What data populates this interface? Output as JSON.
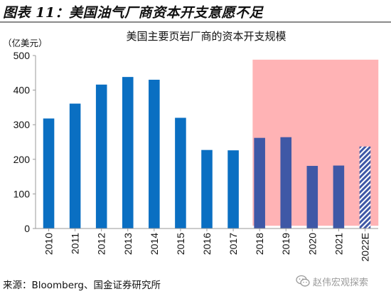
{
  "figure": {
    "title": "图表 11：美国油气厂商资本开支意愿不足",
    "source": "来源：Bloomberg、国金证券研究所",
    "watermark": "赵伟宏观探索"
  },
  "colors": {
    "bar": "#0a6fc2",
    "highlight_region": "#ffb3b5",
    "bar_in_highlight": "#3f58a6",
    "axis": "#999999",
    "text": "#111111"
  },
  "chart_data": {
    "type": "bar",
    "title": "美国主要页岩厂商的资本开支规模",
    "unit_label": "（亿美元）",
    "categories": [
      "2010",
      "2011",
      "2012",
      "2013",
      "2014",
      "2015",
      "2016",
      "2017",
      "2018",
      "2019",
      "2020",
      "2021",
      "2022E"
    ],
    "values": [
      318,
      361,
      416,
      438,
      430,
      320,
      227,
      226,
      262,
      264,
      181,
      182,
      237
    ],
    "estimated": [
      false,
      false,
      false,
      false,
      false,
      false,
      false,
      false,
      false,
      false,
      false,
      false,
      true
    ],
    "ylim": [
      0,
      500
    ],
    "yticks": [
      0,
      100,
      200,
      300,
      400,
      500
    ],
    "grid": false,
    "legend": "none",
    "highlight_range": [
      "2018",
      "2022E"
    ]
  }
}
